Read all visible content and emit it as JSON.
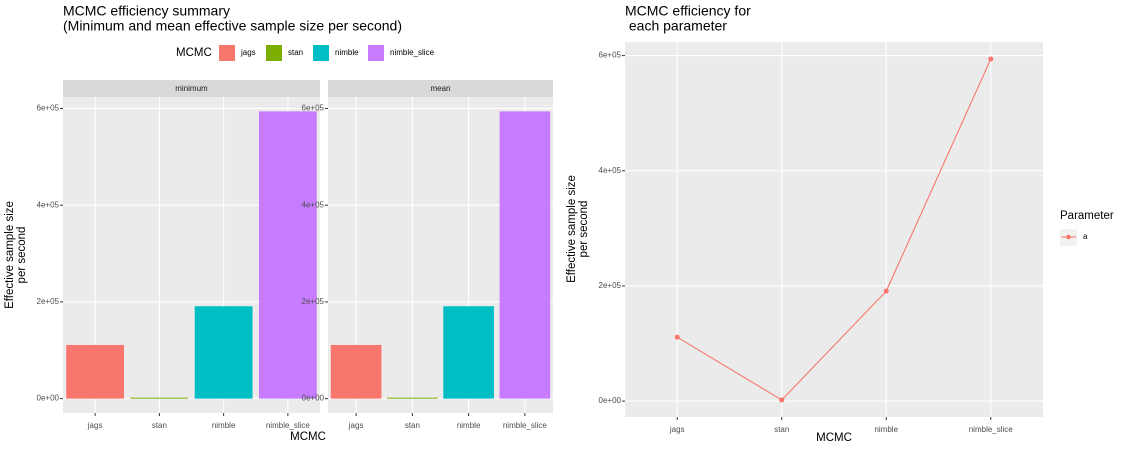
{
  "chart_data": [
    {
      "type": "bar",
      "title": [
        "MCMC efficiency summary",
        "(Minimum and mean effective sample size per second)"
      ],
      "legend_title": "MCMC",
      "legend_position": "top",
      "categories": [
        "jags",
        "stan",
        "nimble",
        "nimble_slice"
      ],
      "colors": [
        "#F8766D",
        "#7CAE00",
        "#00BFC4",
        "#C77CFF"
      ],
      "facets": [
        {
          "name": "minimum",
          "values": [
            111000,
            2000,
            191000,
            594000
          ]
        },
        {
          "name": "mean",
          "values": [
            111000,
            2000,
            191000,
            594000
          ]
        }
      ],
      "xlabel": "MCMC",
      "ylabel": [
        "Effective sample size",
        "per second"
      ],
      "ylim": [
        -29700,
        623700
      ],
      "yticks": [
        {
          "value": 0,
          "label": "0e+00"
        },
        {
          "value": 200000,
          "label": "2e+05"
        },
        {
          "value": 400000,
          "label": "4e+05"
        },
        {
          "value": 600000,
          "label": "6e+05"
        }
      ],
      "grid": true
    },
    {
      "type": "line",
      "title": [
        "MCMC efficiency for",
        " each parameter"
      ],
      "legend_title": "Parameter",
      "legend_position": "right",
      "categories": [
        "jags",
        "stan",
        "nimble",
        "nimble_slice"
      ],
      "series": [
        {
          "name": "a",
          "color": "#F8766D",
          "values": [
            111000,
            2000,
            191000,
            594000
          ]
        }
      ],
      "xlabel": "MCMC",
      "ylabel": [
        "Effective sample size",
        "per second"
      ],
      "ylim": [
        -27600,
        623600
      ],
      "yticks": [
        {
          "value": 0,
          "label": "0e+00"
        },
        {
          "value": 200000,
          "label": "2e+05"
        },
        {
          "value": 400000,
          "label": "4e+05"
        },
        {
          "value": 600000,
          "label": "6e+05"
        }
      ],
      "grid": true
    }
  ]
}
